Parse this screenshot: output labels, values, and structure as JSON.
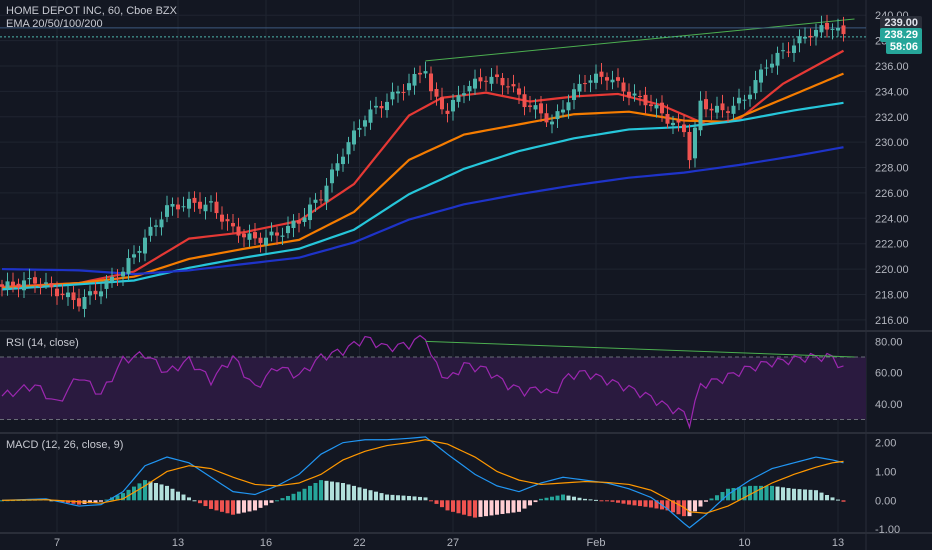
{
  "header": {
    "symbol": "HOME DEPOT INC, 60, Cboe BZX",
    "indicator": "EMA 20/50/100/200"
  },
  "panes": {
    "rsi_title": "RSI (14, close)",
    "macd_title": "MACD (12, 26, close, 9)"
  },
  "price_tags": {
    "high_line": "239.00",
    "last": "238.29",
    "countdown": "58:06"
  },
  "colors": {
    "background": "#131722",
    "grid": "#1f2430",
    "candle_up": "#4db6ac",
    "candle_down": "#ef5350",
    "ema20": "#e53935",
    "ema50": "#f57c00",
    "ema100": "#26c6da",
    "ema200": "#1e33c8",
    "trendline": "#4caf50",
    "rsi": "#9c27b0",
    "rsi_band": "#2a1a3f",
    "macd": "#2196f3",
    "signal": "#ff9800"
  },
  "chart_data": [
    {
      "type": "candlestick",
      "title": "HOME DEPOT INC, 60, Cboe BZX",
      "x_tick_labels": [
        "7",
        "13",
        "16",
        "22",
        "27",
        "Feb",
        "10",
        "13"
      ],
      "y_ticks": [
        "240.00",
        "238.00",
        "236.00",
        "234.00",
        "232.00",
        "230.00",
        "228.00",
        "226.00",
        "224.00",
        "222.00",
        "220.00",
        "218.00",
        "216.00"
      ],
      "ylim": [
        215.2,
        241.2
      ],
      "close_path": [
        [
          0,
          218.6
        ],
        [
          6,
          219.1
        ],
        [
          10,
          218.2
        ],
        [
          14,
          217.4
        ],
        [
          18,
          218.5
        ],
        [
          22,
          219.9
        ],
        [
          26,
          222.4
        ],
        [
          30,
          224.8
        ],
        [
          34,
          225.2
        ],
        [
          38,
          225.0
        ],
        [
          42,
          223.1
        ],
        [
          46,
          222.3
        ],
        [
          50,
          222.7
        ],
        [
          54,
          223.8
        ],
        [
          58,
          225.8
        ],
        [
          62,
          229.2
        ],
        [
          66,
          232.0
        ],
        [
          70,
          233.3
        ],
        [
          74,
          234.6
        ],
        [
          77,
          235.9
        ],
        [
          78,
          233.8
        ],
        [
          81,
          232.4
        ],
        [
          84,
          234.2
        ],
        [
          88,
          235.1
        ],
        [
          92,
          234.6
        ],
        [
          95,
          233.1
        ],
        [
          98,
          232.3
        ],
        [
          100,
          231.5
        ],
        [
          103,
          233.4
        ],
        [
          106,
          234.9
        ],
        [
          110,
          235.2
        ],
        [
          114,
          233.8
        ],
        [
          118,
          233.0
        ],
        [
          121,
          231.8
        ],
        [
          124,
          230.9
        ],
        [
          125,
          228.9
        ],
        [
          127,
          233.0
        ],
        [
          131,
          232.4
        ],
        [
          135,
          233.4
        ],
        [
          139,
          236.1
        ],
        [
          143,
          237.4
        ],
        [
          147,
          238.6
        ],
        [
          151,
          239.2
        ],
        [
          153,
          238.3
        ]
      ],
      "series": [
        {
          "name": "EMA 20",
          "values": [
            [
              0,
              218.6
            ],
            [
              14,
              218.9
            ],
            [
              24,
              219.8
            ],
            [
              34,
              222.4
            ],
            [
              44,
              222.9
            ],
            [
              54,
              223.8
            ],
            [
              64,
              226.7
            ],
            [
              74,
              232.1
            ],
            [
              80,
              233.5
            ],
            [
              88,
              233.9
            ],
            [
              96,
              233.2
            ],
            [
              104,
              233.6
            ],
            [
              112,
              233.8
            ],
            [
              120,
              232.9
            ],
            [
              128,
              231.4
            ],
            [
              134,
              231.8
            ],
            [
              142,
              234.6
            ],
            [
              153,
              237.2
            ]
          ]
        },
        {
          "name": "EMA 50",
          "values": [
            [
              0,
              218.5
            ],
            [
              14,
              218.9
            ],
            [
              24,
              219.4
            ],
            [
              34,
              220.8
            ],
            [
              44,
              221.6
            ],
            [
              54,
              222.3
            ],
            [
              64,
              224.5
            ],
            [
              74,
              228.6
            ],
            [
              84,
              230.6
            ],
            [
              94,
              231.4
            ],
            [
              104,
              232.2
            ],
            [
              114,
              232.4
            ],
            [
              124,
              231.7
            ],
            [
              132,
              231.6
            ],
            [
              142,
              233.4
            ],
            [
              153,
              235.4
            ]
          ]
        },
        {
          "name": "EMA 100",
          "values": [
            [
              0,
              218.4
            ],
            [
              14,
              218.8
            ],
            [
              24,
              219.1
            ],
            [
              34,
              220.1
            ],
            [
              44,
              220.9
            ],
            [
              54,
              221.6
            ],
            [
              64,
              223.1
            ],
            [
              74,
              225.9
            ],
            [
              84,
              227.9
            ],
            [
              94,
              229.3
            ],
            [
              104,
              230.3
            ],
            [
              114,
              231.0
            ],
            [
              124,
              231.2
            ],
            [
              134,
              231.7
            ],
            [
              144,
              232.5
            ],
            [
              153,
              233.1
            ]
          ]
        },
        {
          "name": "EMA 200",
          "values": [
            [
              0,
              220.0
            ],
            [
              14,
              219.9
            ],
            [
              24,
              219.6
            ],
            [
              34,
              219.9
            ],
            [
              44,
              220.4
            ],
            [
              54,
              220.9
            ],
            [
              64,
              222.1
            ],
            [
              74,
              223.9
            ],
            [
              84,
              225.1
            ],
            [
              94,
              225.9
            ],
            [
              104,
              226.6
            ],
            [
              114,
              227.2
            ],
            [
              124,
              227.6
            ],
            [
              134,
              228.2
            ],
            [
              144,
              228.9
            ],
            [
              153,
              229.6
            ]
          ]
        }
      ],
      "trendline": [
        [
          77,
          236.4
        ],
        [
          155,
          239.7
        ]
      ],
      "horizontal_lines": [
        239.0,
        238.29
      ]
    },
    {
      "type": "line",
      "title": "RSI (14, close)",
      "y_ticks": [
        "80.00",
        "60.00",
        "40.00"
      ],
      "ylim": [
        22,
        86
      ],
      "bands": [
        30,
        70
      ],
      "series": [
        {
          "name": "RSI",
          "values": [
            [
              0,
              45
            ],
            [
              6,
              52
            ],
            [
              10,
              40
            ],
            [
              14,
              58
            ],
            [
              18,
              46
            ],
            [
              22,
              68
            ],
            [
              26,
              72
            ],
            [
              30,
              60
            ],
            [
              34,
              68
            ],
            [
              38,
              55
            ],
            [
              42,
              70
            ],
            [
              46,
              50
            ],
            [
              50,
              64
            ],
            [
              54,
              58
            ],
            [
              58,
              70
            ],
            [
              62,
              74
            ],
            [
              66,
              82
            ],
            [
              70,
              76
            ],
            [
              74,
              78
            ],
            [
              77,
              84
            ],
            [
              78,
              70
            ],
            [
              81,
              55
            ],
            [
              84,
              65
            ],
            [
              88,
              62
            ],
            [
              92,
              52
            ],
            [
              95,
              48
            ],
            [
              98,
              50
            ],
            [
              100,
              46
            ],
            [
              103,
              58
            ],
            [
              106,
              60
            ],
            [
              110,
              55
            ],
            [
              114,
              50
            ],
            [
              118,
              44
            ],
            [
              121,
              38
            ],
            [
              124,
              34
            ],
            [
              125,
              28
            ],
            [
              127,
              52
            ],
            [
              131,
              56
            ],
            [
              135,
              62
            ],
            [
              139,
              66
            ],
            [
              143,
              68
            ],
            [
              147,
              70
            ],
            [
              151,
              70
            ],
            [
              153,
              62
            ]
          ]
        }
      ],
      "trendline": [
        [
          77,
          80
        ],
        [
          155,
          70
        ]
      ]
    },
    {
      "type": "bar",
      "title": "MACD (12, 26, close, 9)",
      "y_ticks": [
        "2.00",
        "1.00",
        "0.00",
        "-1.00"
      ],
      "ylim": [
        -1.1,
        2.3
      ],
      "series": [
        {
          "name": "MACD",
          "values": [
            [
              0,
              0.0
            ],
            [
              8,
              0.05
            ],
            [
              14,
              -0.2
            ],
            [
              18,
              -0.15
            ],
            [
              22,
              0.3
            ],
            [
              26,
              1.2
            ],
            [
              30,
              1.5
            ],
            [
              34,
              1.3
            ],
            [
              38,
              0.8
            ],
            [
              42,
              0.3
            ],
            [
              46,
              0.2
            ],
            [
              50,
              0.5
            ],
            [
              54,
              0.9
            ],
            [
              58,
              1.6
            ],
            [
              62,
              2.0
            ],
            [
              66,
              2.1
            ],
            [
              70,
              2.1
            ],
            [
              74,
              2.15
            ],
            [
              77,
              2.2
            ],
            [
              81,
              1.6
            ],
            [
              86,
              0.9
            ],
            [
              90,
              0.5
            ],
            [
              94,
              0.3
            ],
            [
              98,
              0.6
            ],
            [
              102,
              0.8
            ],
            [
              106,
              0.7
            ],
            [
              110,
              0.6
            ],
            [
              114,
              0.4
            ],
            [
              118,
              0.1
            ],
            [
              121,
              -0.3
            ],
            [
              124,
              -0.8
            ],
            [
              125,
              -0.95
            ],
            [
              128,
              -0.5
            ],
            [
              132,
              0.2
            ],
            [
              136,
              0.7
            ],
            [
              140,
              1.1
            ],
            [
              144,
              1.3
            ],
            [
              148,
              1.5
            ],
            [
              151,
              1.4
            ],
            [
              153,
              1.3
            ]
          ]
        },
        {
          "name": "Signal",
          "values": [
            [
              0,
              0.0
            ],
            [
              8,
              0.02
            ],
            [
              14,
              -0.05
            ],
            [
              18,
              -0.1
            ],
            [
              22,
              0.05
            ],
            [
              26,
              0.5
            ],
            [
              30,
              1.0
            ],
            [
              34,
              1.2
            ],
            [
              38,
              1.1
            ],
            [
              42,
              0.8
            ],
            [
              46,
              0.55
            ],
            [
              50,
              0.5
            ],
            [
              54,
              0.6
            ],
            [
              58,
              0.9
            ],
            [
              62,
              1.4
            ],
            [
              66,
              1.7
            ],
            [
              70,
              1.9
            ],
            [
              74,
              2.0
            ],
            [
              77,
              2.1
            ],
            [
              81,
              1.95
            ],
            [
              86,
              1.5
            ],
            [
              90,
              1.0
            ],
            [
              94,
              0.7
            ],
            [
              98,
              0.55
            ],
            [
              102,
              0.6
            ],
            [
              106,
              0.65
            ],
            [
              110,
              0.62
            ],
            [
              114,
              0.55
            ],
            [
              118,
              0.35
            ],
            [
              121,
              0.05
            ],
            [
              124,
              -0.25
            ],
            [
              125,
              -0.4
            ],
            [
              128,
              -0.45
            ],
            [
              132,
              -0.2
            ],
            [
              136,
              0.2
            ],
            [
              140,
              0.6
            ],
            [
              144,
              0.9
            ],
            [
              148,
              1.15
            ],
            [
              151,
              1.3
            ],
            [
              153,
              1.35
            ]
          ]
        }
      ]
    }
  ]
}
